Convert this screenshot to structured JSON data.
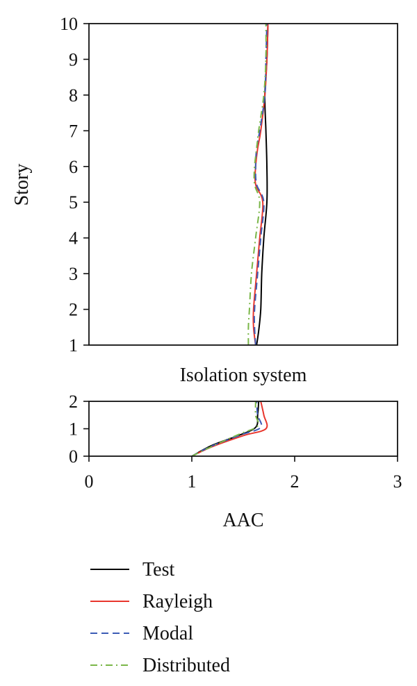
{
  "chart_data": [
    {
      "type": "line",
      "panel": "superstructure",
      "title": "",
      "xlabel": "",
      "ylabel": "Story",
      "xlim": [
        0,
        3
      ],
      "ylim": [
        1,
        10
      ],
      "yticks": [
        "1",
        "2",
        "3",
        "4",
        "5",
        "6",
        "7",
        "8",
        "9",
        "10"
      ],
      "grid": false,
      "series": [
        {
          "name": "Test",
          "color": "#000000",
          "dash": "solid",
          "points": [
            [
              1.63,
              1.0
            ],
            [
              1.65,
              1.4
            ],
            [
              1.67,
              2.0
            ],
            [
              1.68,
              3.0
            ],
            [
              1.7,
              4.0
            ],
            [
              1.73,
              5.0
            ],
            [
              1.73,
              6.0
            ],
            [
              1.72,
              7.0
            ],
            [
              1.71,
              8.0
            ],
            [
              1.73,
              9.0
            ],
            [
              1.74,
              10.0
            ]
          ]
        },
        {
          "name": "Rayleigh",
          "color": "#e8352c",
          "dash": "solid",
          "points": [
            [
              1.62,
              1.0
            ],
            [
              1.6,
              1.5
            ],
            [
              1.6,
              2.0
            ],
            [
              1.63,
              3.0
            ],
            [
              1.66,
              4.0
            ],
            [
              1.69,
              5.0
            ],
            [
              1.62,
              5.5
            ],
            [
              1.62,
              6.0
            ],
            [
              1.64,
              6.5
            ],
            [
              1.67,
              7.0
            ],
            [
              1.71,
              8.0
            ],
            [
              1.73,
              9.0
            ],
            [
              1.74,
              10.0
            ]
          ]
        },
        {
          "name": "Modal",
          "color": "#3b5bb5",
          "dash": "dashed",
          "points": [
            [
              1.62,
              1.0
            ],
            [
              1.61,
              1.5
            ],
            [
              1.61,
              2.0
            ],
            [
              1.64,
              3.0
            ],
            [
              1.67,
              4.0
            ],
            [
              1.7,
              5.0
            ],
            [
              1.63,
              5.5
            ],
            [
              1.62,
              6.0
            ],
            [
              1.63,
              6.5
            ],
            [
              1.66,
              7.0
            ],
            [
              1.71,
              8.0
            ],
            [
              1.72,
              9.0
            ],
            [
              1.73,
              10.0
            ]
          ]
        },
        {
          "name": "Distributed",
          "color": "#7ab648",
          "dash": "dashdot",
          "points": [
            [
              1.55,
              1.0
            ],
            [
              1.55,
              1.5
            ],
            [
              1.56,
              2.0
            ],
            [
              1.58,
              3.0
            ],
            [
              1.62,
              4.0
            ],
            [
              1.66,
              5.0
            ],
            [
              1.61,
              5.5
            ],
            [
              1.61,
              6.0
            ],
            [
              1.63,
              6.5
            ],
            [
              1.65,
              7.0
            ],
            [
              1.7,
              8.0
            ],
            [
              1.72,
              9.0
            ],
            [
              1.72,
              10.0
            ]
          ]
        }
      ]
    },
    {
      "type": "line",
      "panel": "isolation",
      "title": "Isolation system",
      "xlabel": "AAC",
      "ylabel": "",
      "xlim": [
        0,
        3
      ],
      "ylim": [
        0,
        2
      ],
      "xticks": [
        "0",
        "1",
        "2",
        "3"
      ],
      "yticks": [
        "0",
        "1",
        "2"
      ],
      "grid": false,
      "series": [
        {
          "name": "Test",
          "color": "#000000",
          "dash": "solid",
          "points": [
            [
              1.0,
              0.0
            ],
            [
              1.2,
              0.4
            ],
            [
              1.45,
              0.75
            ],
            [
              1.62,
              1.05
            ],
            [
              1.64,
              1.5
            ],
            [
              1.65,
              2.0
            ]
          ]
        },
        {
          "name": "Rayleigh",
          "color": "#e8352c",
          "dash": "solid",
          "points": [
            [
              1.0,
              0.0
            ],
            [
              1.2,
              0.35
            ],
            [
              1.5,
              0.75
            ],
            [
              1.72,
              1.0
            ],
            [
              1.7,
              1.5
            ],
            [
              1.67,
              2.0
            ]
          ]
        },
        {
          "name": "Modal",
          "color": "#3b5bb5",
          "dash": "dashed",
          "points": [
            [
              1.0,
              0.0
            ],
            [
              1.2,
              0.38
            ],
            [
              1.48,
              0.78
            ],
            [
              1.67,
              1.05
            ],
            [
              1.64,
              1.5
            ],
            [
              1.63,
              2.0
            ]
          ]
        },
        {
          "name": "Distributed",
          "color": "#7ab648",
          "dash": "dashdot",
          "points": [
            [
              1.0,
              0.0
            ],
            [
              1.22,
              0.4
            ],
            [
              1.46,
              0.8
            ],
            [
              1.64,
              1.1
            ],
            [
              1.62,
              1.5
            ],
            [
              1.62,
              2.0
            ]
          ]
        }
      ]
    }
  ],
  "legend": {
    "placement": "bottom",
    "items": [
      {
        "label": "Test",
        "color": "#000000",
        "dash": "solid"
      },
      {
        "label": "Rayleigh",
        "color": "#e8352c",
        "dash": "solid"
      },
      {
        "label": "Modal",
        "color": "#3b5bb5",
        "dash": "dashed"
      },
      {
        "label": "Distributed",
        "color": "#7ab648",
        "dash": "dashdot"
      }
    ]
  }
}
